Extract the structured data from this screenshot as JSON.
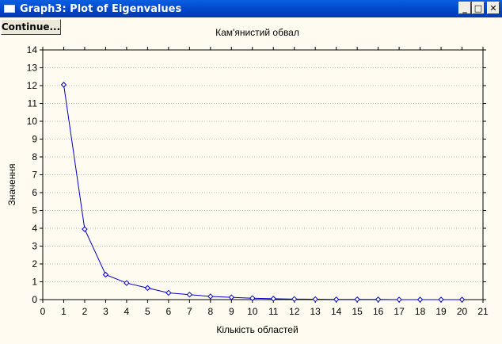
{
  "window": {
    "title": "Graph3: Plot of Eigenvalues",
    "minimize": "_",
    "maximize": "□",
    "close": "✕"
  },
  "toolbar": {
    "continue_label": "Continue..."
  },
  "colors": {
    "series": "#0000c8",
    "background": "#fffbf0",
    "titlebar": "#0054e3"
  },
  "chart_data": {
    "type": "line",
    "title": "Кам'янистий обвал",
    "xlabel": "Кількість областей",
    "ylabel": "Значення",
    "xlim": [
      0,
      21
    ],
    "ylim": [
      0,
      14
    ],
    "x_ticks": [
      0,
      1,
      2,
      3,
      4,
      5,
      6,
      7,
      8,
      9,
      10,
      11,
      12,
      13,
      14,
      15,
      16,
      17,
      18,
      19,
      20,
      21
    ],
    "y_ticks": [
      0,
      1,
      2,
      3,
      4,
      5,
      6,
      7,
      8,
      9,
      10,
      11,
      12,
      13,
      14
    ],
    "grid": "horizontal-dotted",
    "series": [
      {
        "x": [
          1,
          2,
          3,
          4,
          5,
          6,
          7,
          8,
          9,
          10,
          11,
          12,
          13,
          14,
          15,
          16,
          17,
          18,
          19,
          20
        ],
        "values": [
          12.05,
          3.95,
          1.4,
          0.93,
          0.65,
          0.38,
          0.28,
          0.18,
          0.13,
          0.08,
          0.05,
          0.03,
          0.02,
          0.01,
          0.01,
          0.01,
          0.0,
          0.0,
          0.0,
          0.0
        ]
      }
    ]
  }
}
